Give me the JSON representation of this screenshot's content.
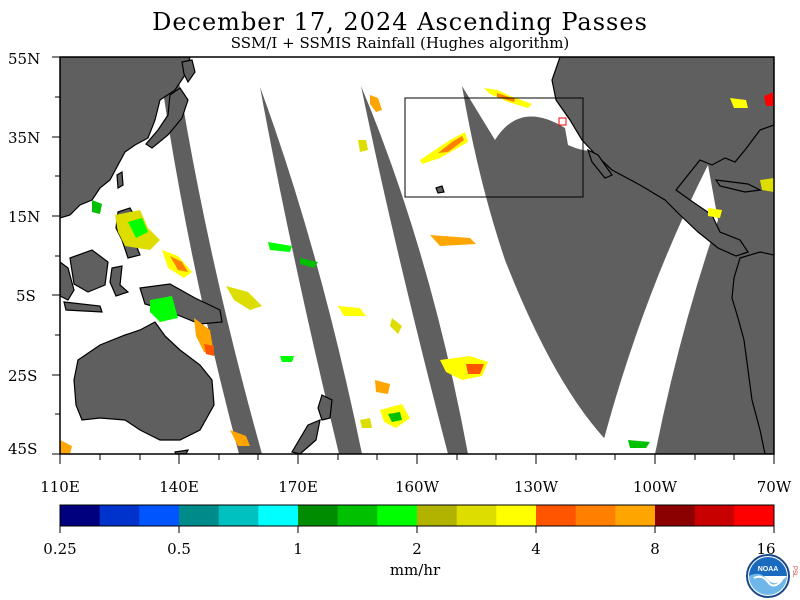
{
  "title": "December 17, 2024  Ascending Passes",
  "subtitle": "SSM/I + SSMIS Rainfall (Hughes algorithm)",
  "lat_labels": [
    "55N",
    "35N",
    "15N",
    "5S",
    "25S",
    "45S"
  ],
  "lon_labels": [
    "110E",
    "140E",
    "170E",
    "160W",
    "130W",
    "100W",
    "70W"
  ],
  "colorbar": {
    "tick_labels": [
      "0.25",
      "0.5",
      "1",
      "2",
      "4",
      "8",
      "16"
    ],
    "units": "mm/hr",
    "colors": [
      "#00007f",
      "#0033cc",
      "#0055ff",
      "#008b8b",
      "#00c0c0",
      "#00ffff",
      "#008c00",
      "#00c000",
      "#00ff00",
      "#b2b200",
      "#dddd00",
      "#ffff00",
      "#ff5500",
      "#ff7f00",
      "#ffa500",
      "#8b0000",
      "#c80000",
      "#ff0000"
    ]
  },
  "colors": {
    "land": "#5f5f5f",
    "gap": "#5f5f5f",
    "ocean": "#ffffff"
  },
  "logo": {
    "text": "NOAA",
    "side_text": "PSL"
  }
}
